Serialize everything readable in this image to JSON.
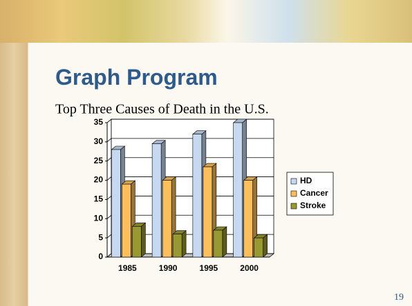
{
  "slide": {
    "title": "Graph Program",
    "page_number": "19"
  },
  "chart_data": {
    "type": "bar3d",
    "title": "Top Three Causes of Death in the U.S.",
    "categories": [
      "1985",
      "1990",
      "1995",
      "2000"
    ],
    "series": [
      {
        "name": "HD",
        "color": "#c6d9f0",
        "values": [
          28,
          29.5,
          32,
          35
        ]
      },
      {
        "name": "Cancer",
        "color": "#fbbf5e",
        "values": [
          19,
          20,
          23.5,
          20
        ]
      },
      {
        "name": "Stroke",
        "color": "#999933",
        "values": [
          8,
          6,
          7,
          5
        ]
      }
    ],
    "ylim": [
      0,
      35
    ],
    "yticks": [
      0,
      5,
      10,
      15,
      20,
      25,
      30,
      35
    ],
    "grid": true,
    "legend": "right"
  }
}
